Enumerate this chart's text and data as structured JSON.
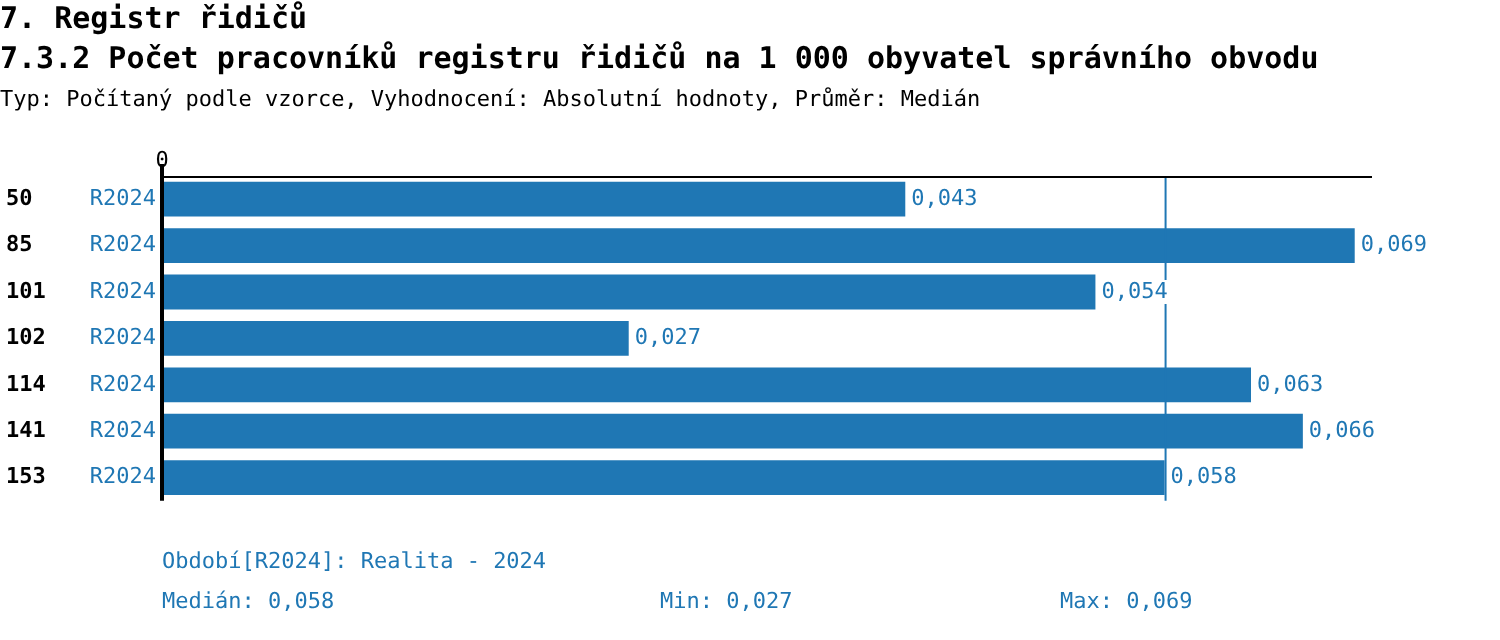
{
  "chart_data": {
    "type": "bar",
    "orientation": "horizontal",
    "title": "7. Registr řidičů",
    "subtitle": "7.3.2 Počet pracovníků registru řidičů na 1 000 obyvatel správního obvodu",
    "categories": [
      "50",
      "85",
      "101",
      "102",
      "114",
      "141",
      "153"
    ],
    "series": [
      {
        "name": "R2024",
        "color": "#1f77b4",
        "values": [
          0.043,
          0.069,
          0.054,
          0.027,
          0.063,
          0.066,
          0.058
        ],
        "value_labels": [
          "0,043",
          "0,069",
          "0,054",
          "0,027",
          "0,063",
          "0,066",
          "0,058"
        ]
      }
    ],
    "xlim": [
      0,
      0.07
    ],
    "grid": false,
    "legend": false,
    "ref_lines": [
      {
        "axis": "x",
        "value": 0.058,
        "color": "#1f77b4"
      }
    ],
    "annotations": [
      "0",
      "Typ: Počítaný podle vzorce, Vyhodnocení: Absolutní hodnoty, Průměr: Medián",
      "Období[R2024]: Realita - 2024",
      "Medián: 0,058",
      "Min: 0,027",
      "Max: 0,069"
    ]
  }
}
